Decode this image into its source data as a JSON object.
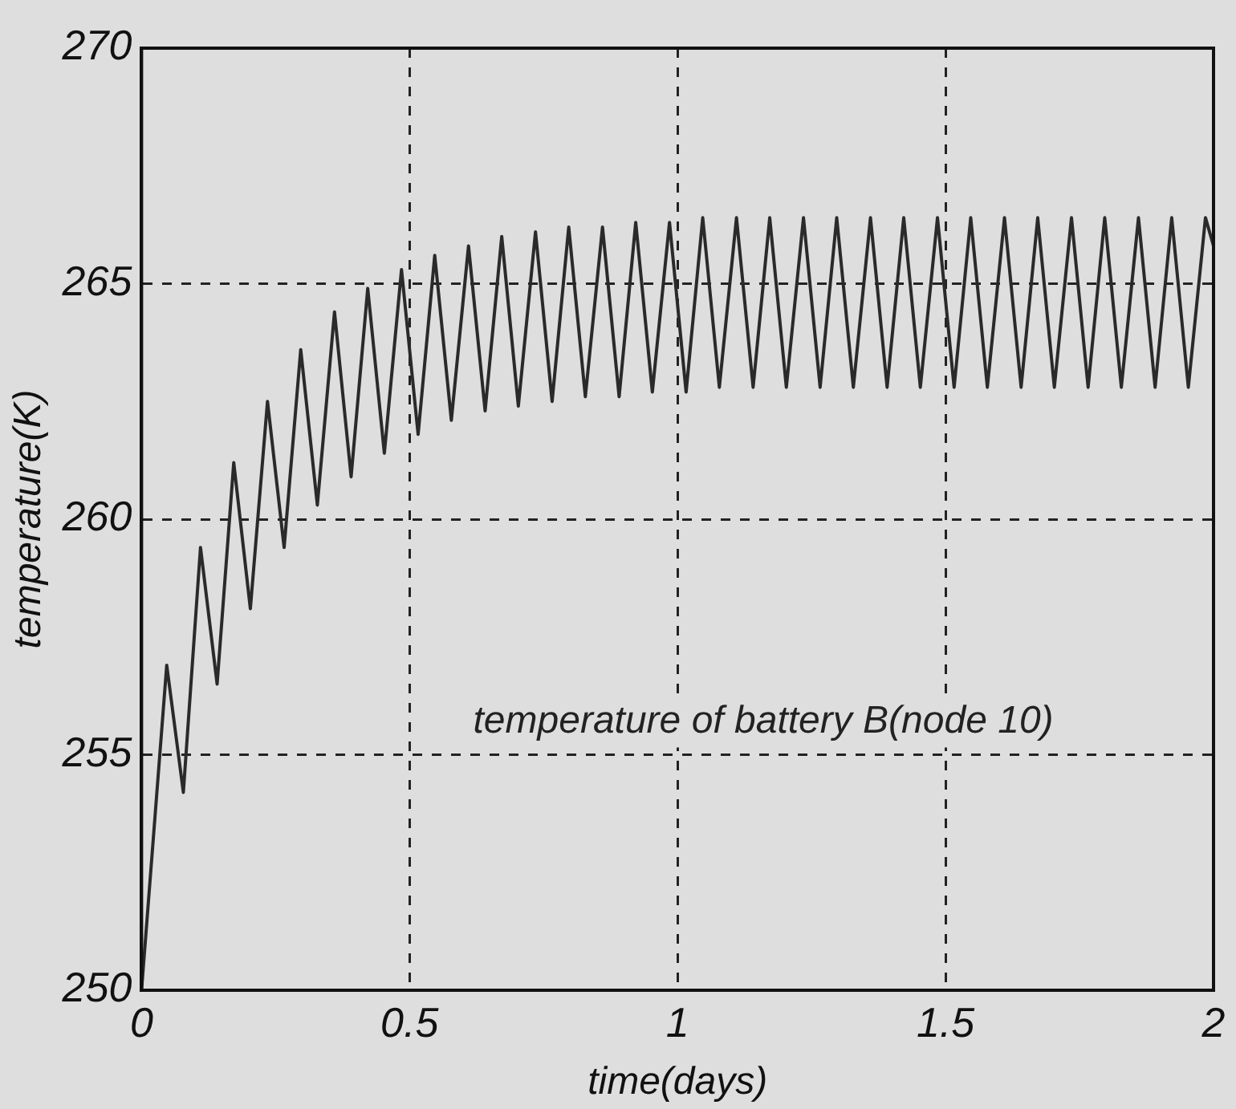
{
  "chart_data": {
    "type": "line",
    "xlabel": "time(days)",
    "ylabel": "temperature(K)",
    "xlim": [
      0,
      2
    ],
    "xticks": [
      0,
      0.5,
      1,
      1.5,
      2
    ],
    "ylim": [
      250,
      270
    ],
    "yticks": [
      250,
      255,
      260,
      265,
      270
    ],
    "grid": true,
    "marker": "none",
    "line_style": "solid",
    "series": [
      {
        "color": "#2a2a2a",
        "x": [
          0,
          0.047,
          0.078,
          0.11,
          0.141,
          0.172,
          0.203,
          0.235,
          0.266,
          0.297,
          0.328,
          0.36,
          0.391,
          0.422,
          0.453,
          0.485,
          0.516,
          0.547,
          0.578,
          0.61,
          0.641,
          0.672,
          0.703,
          0.735,
          0.766,
          0.797,
          0.828,
          0.86,
          0.891,
          0.922,
          0.953,
          0.985,
          1.016,
          1.047,
          1.078,
          1.11,
          1.141,
          1.172,
          1.203,
          1.235,
          1.266,
          1.297,
          1.328,
          1.36,
          1.391,
          1.422,
          1.453,
          1.485,
          1.516,
          1.547,
          1.578,
          1.61,
          1.641,
          1.672,
          1.703,
          1.735,
          1.766,
          1.797,
          1.828,
          1.86,
          1.891,
          1.922,
          1.953,
          1.985,
          2.0
        ],
        "values": [
          250,
          256.9,
          254.2,
          259.4,
          256.5,
          261.2,
          258.1,
          262.5,
          259.4,
          263.6,
          260.3,
          264.4,
          260.9,
          264.9,
          261.4,
          265.3,
          261.8,
          265.6,
          262.1,
          265.8,
          262.3,
          266.0,
          262.4,
          266.1,
          262.5,
          266.2,
          262.6,
          266.2,
          262.6,
          266.3,
          262.7,
          266.3,
          262.7,
          266.4,
          262.8,
          266.4,
          262.8,
          266.4,
          262.8,
          266.4,
          262.8,
          266.4,
          262.8,
          266.4,
          262.8,
          266.4,
          262.8,
          266.4,
          262.8,
          266.4,
          262.8,
          266.4,
          262.8,
          266.4,
          262.8,
          266.4,
          262.8,
          266.4,
          262.8,
          266.4,
          262.8,
          266.4,
          262.8,
          266.4,
          265.8
        ]
      }
    ],
    "annotations": [
      "temperature of battery B(node 10)"
    ]
  }
}
